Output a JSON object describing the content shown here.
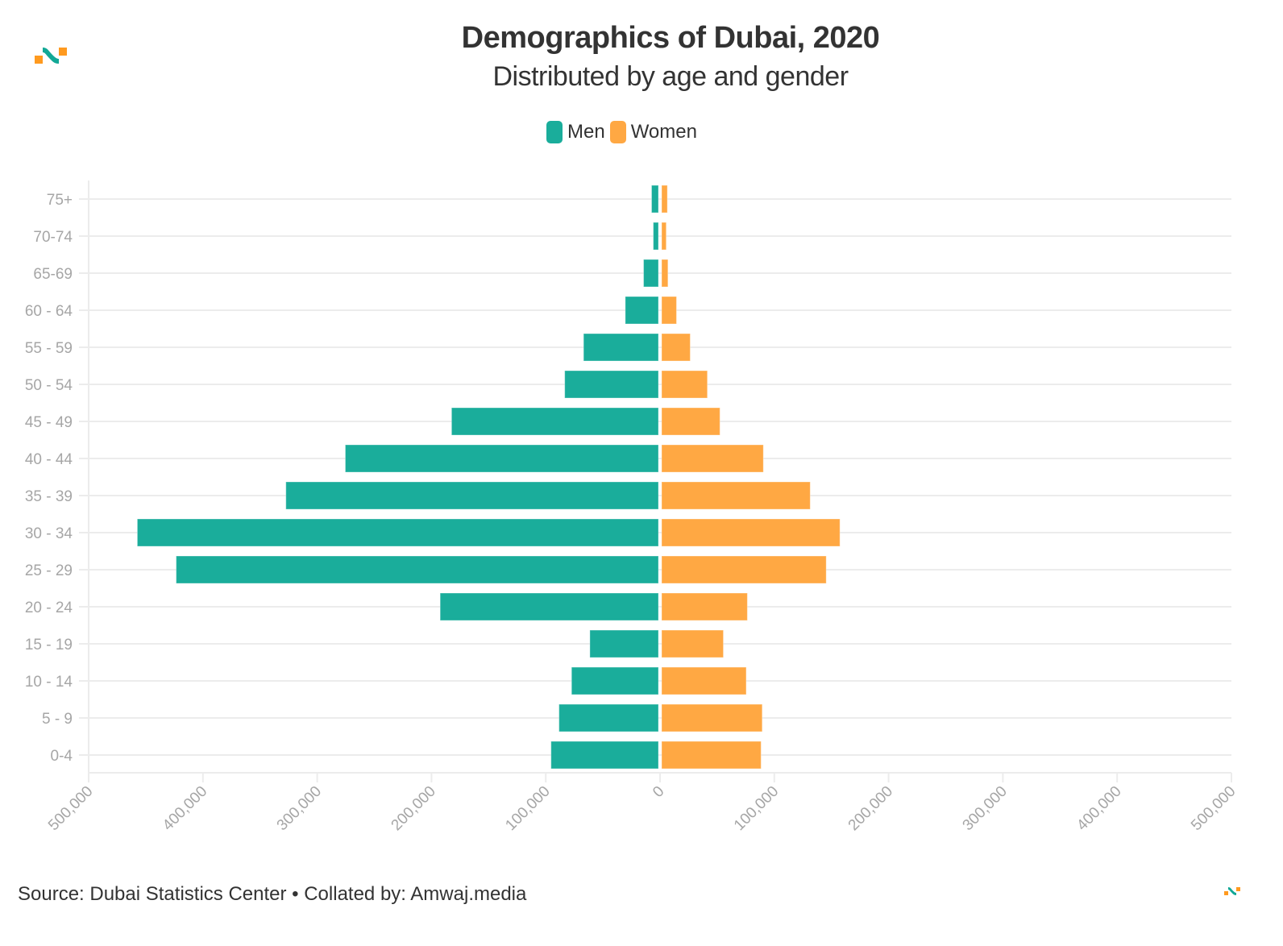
{
  "header": {
    "title": "Demographics of Dubai, 2020",
    "subtitle": "Distributed by age and gender"
  },
  "legend": [
    {
      "label": "Men",
      "color": "#1aad9b"
    },
    {
      "label": "Women",
      "color": "#ffa843"
    }
  ],
  "footer": {
    "source": "Source: Dubai Statistics Center • Collated by: Amwaj.media"
  },
  "logo": {
    "icon": "amwaj-logo-icon",
    "colors": [
      "#ff9a1f",
      "#12a896"
    ]
  },
  "chart_data": {
    "type": "bar",
    "orientation": "horizontal-population-pyramid",
    "title": "Demographics of Dubai, 2020",
    "subtitle": "Distributed by age and gender",
    "xlabel": "",
    "ylabel": "",
    "categories": [
      "75+",
      "70-74",
      "65-69",
      "60 - 64",
      "55 - 59",
      "50 - 54",
      "45 - 49",
      "40 - 44",
      "35 - 39",
      "30 - 34",
      "25 - 29",
      "20 - 24",
      "15 - 19",
      "10 - 14",
      "5 - 9",
      "0-4"
    ],
    "series": [
      {
        "name": "Men",
        "color": "#1aad9b",
        "direction": "left",
        "values": [
          6000,
          4500,
          13000,
          29000,
          65500,
          82000,
          181000,
          274000,
          326000,
          456000,
          422000,
          191000,
          60000,
          76000,
          87000,
          94000
        ]
      },
      {
        "name": "Women",
        "color": "#ffa843",
        "direction": "right",
        "values": [
          5000,
          4000,
          5500,
          13000,
          25000,
          40000,
          51000,
          89000,
          130000,
          156000,
          144000,
          75000,
          54000,
          74000,
          88000,
          87000
        ]
      }
    ],
    "xlim": [
      -500000,
      500000
    ],
    "xticks": [
      -500000,
      -400000,
      -300000,
      -200000,
      -100000,
      0,
      100000,
      200000,
      300000,
      400000,
      500000
    ],
    "xtick_labels": [
      "500,000",
      "400,000",
      "300,000",
      "200,000",
      "100,000",
      "0",
      "100,000",
      "200,000",
      "300,000",
      "400,000",
      "500,000"
    ],
    "grid": true,
    "legend_position": "top-center"
  }
}
